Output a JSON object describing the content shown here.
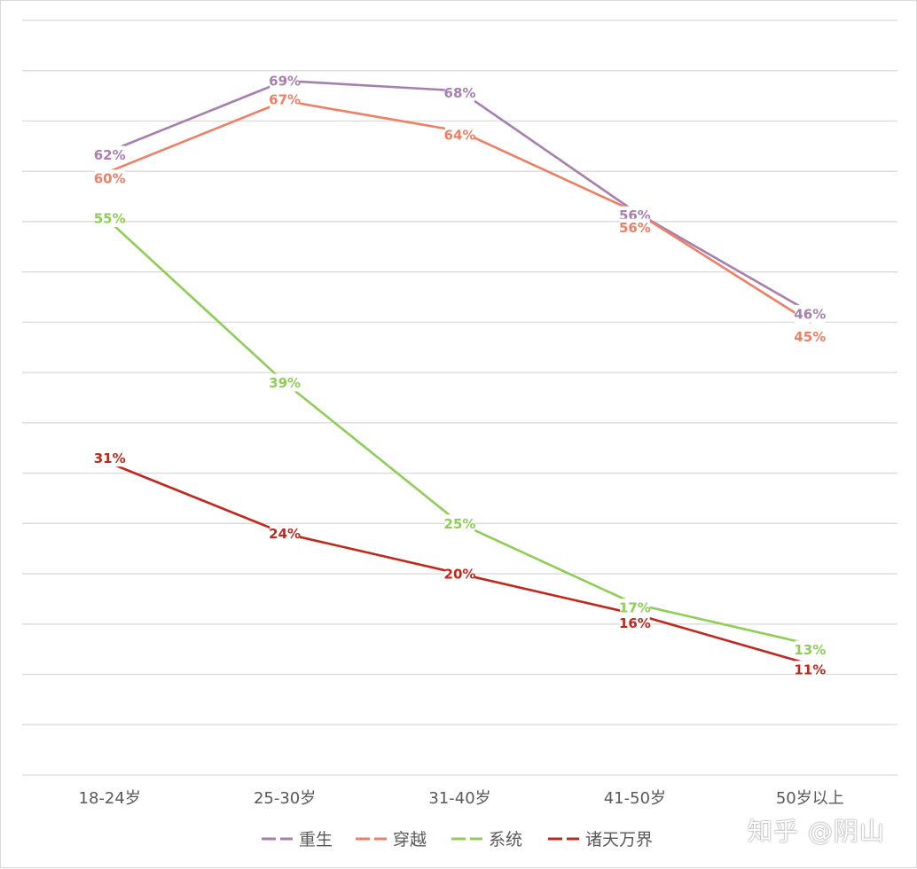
{
  "chart_data": {
    "type": "line",
    "categories": [
      "18-24岁",
      "25-30岁",
      "31-40岁",
      "41-50岁",
      "50岁以上"
    ],
    "series": [
      {
        "name": "重生",
        "color": "#a67fae",
        "values": [
          62,
          69,
          68,
          56,
          46
        ],
        "labels": [
          "62%",
          "69%",
          "68%",
          "56%",
          "46%"
        ]
      },
      {
        "name": "穿越",
        "color": "#ed7f64",
        "values": [
          60,
          67,
          64,
          56,
          45
        ],
        "labels": [
          "60%",
          "67%",
          "64%",
          "56%",
          "45%"
        ]
      },
      {
        "name": "系统",
        "color": "#8fcd57",
        "values": [
          55,
          39,
          25,
          17,
          13
        ],
        "labels": [
          "55%",
          "39%",
          "25%",
          "17%",
          "13%"
        ]
      },
      {
        "name": "诸天万界",
        "color": "#c0281c",
        "values": [
          31,
          24,
          20,
          16,
          11
        ],
        "labels": [
          "31%",
          "24%",
          "20%",
          "16%",
          "11%"
        ]
      }
    ],
    "ylim": [
      0,
      75
    ],
    "grid": true,
    "y_tick_labels_shown": false,
    "legend_position": "bottom",
    "title": "",
    "xlabel": "",
    "ylabel": ""
  },
  "watermark": "知乎 @阴山"
}
